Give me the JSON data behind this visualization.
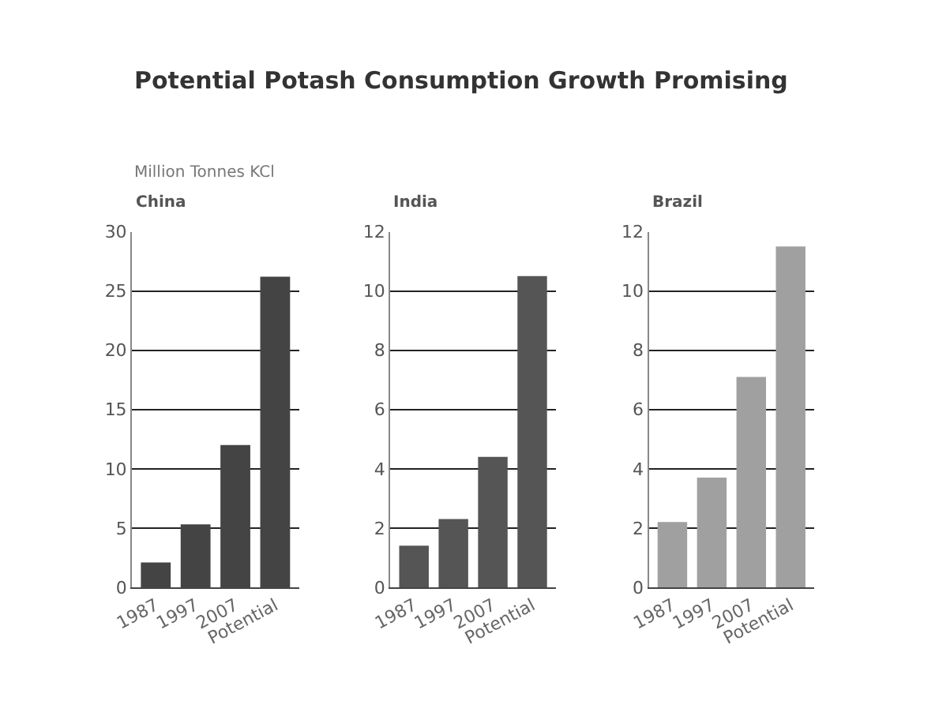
{
  "chart_data": [
    {
      "type": "bar",
      "title": "Potential Potash Consumption Growth Promising",
      "subtitle": "China",
      "ylabel": "Million Tonnes KCl",
      "categories": [
        "1987",
        "1997",
        "2007",
        "Potential"
      ],
      "values": [
        2.1,
        5.3,
        12,
        26.2
      ],
      "color": "#444444",
      "ylim": [
        0,
        30
      ],
      "yticks": [
        0,
        5,
        10,
        15,
        20,
        25,
        30
      ],
      "grid": "y"
    },
    {
      "type": "bar",
      "subtitle": "India",
      "categories": [
        "1987",
        "1997",
        "2007",
        "Potential"
      ],
      "values": [
        1.4,
        2.3,
        4.4,
        10.5
      ],
      "color": "#555555",
      "ylim": [
        0,
        12
      ],
      "yticks": [
        0,
        2,
        4,
        6,
        8,
        10,
        12
      ],
      "grid": "y"
    },
    {
      "type": "bar",
      "subtitle": "Brazil",
      "categories": [
        "1987",
        "1997",
        "2007",
        "Potential"
      ],
      "values": [
        2.2,
        3.7,
        7.1,
        11.5
      ],
      "color": "#a0a0a0",
      "ylim": [
        0,
        12
      ],
      "yticks": [
        0,
        2,
        4,
        6,
        8,
        10,
        12
      ],
      "grid": "y"
    }
  ]
}
